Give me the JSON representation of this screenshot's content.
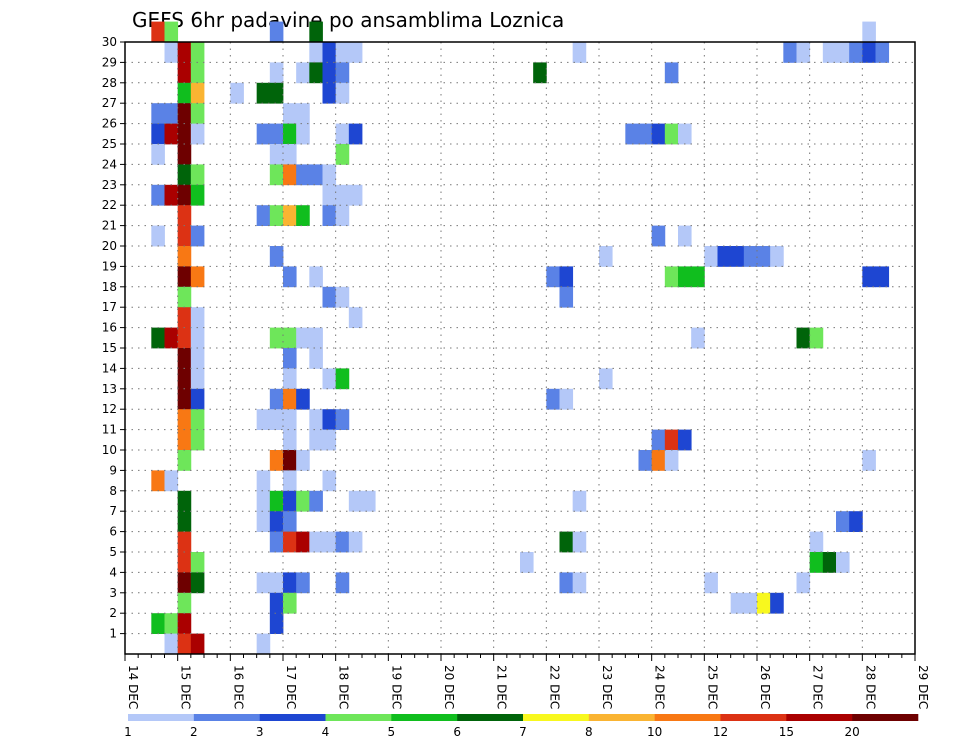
{
  "chart_data": {
    "type": "heatmap",
    "title": "GEFS 6hr padavine po ansamblima Loznica",
    "xlabel": "",
    "ylabel": "",
    "x_ticks": [
      "14 DEC",
      "15 DEC",
      "16 DEC",
      "17 DEC",
      "18 DEC",
      "19 DEC",
      "20 DEC",
      "21 DEC",
      "22 DEC",
      "23 DEC",
      "24 DEC",
      "25 DEC",
      "26 DEC",
      "27 DEC",
      "28 DEC",
      "29 DEC"
    ],
    "y_ticks": [
      1,
      2,
      3,
      4,
      5,
      6,
      7,
      8,
      9,
      10,
      11,
      12,
      13,
      14,
      15,
      16,
      17,
      18,
      19,
      20,
      21,
      22,
      23,
      24,
      25,
      26,
      27,
      28,
      29,
      30
    ],
    "xlim": [
      0,
      60
    ],
    "ylim": [
      0,
      30
    ],
    "x_unit": "6-hour step from 14 DEC 00",
    "grid": true,
    "colorbar": {
      "placement": "bottom",
      "labels": [
        "1",
        "2",
        "3",
        "4",
        "5",
        "6",
        "7",
        "8",
        "10",
        "12",
        "15",
        "20"
      ],
      "colors": [
        "#b4c8f8",
        "#5a82e6",
        "#1e46d2",
        "#6ee65a",
        "#10be1e",
        "#00640a",
        "#f8f81e",
        "#fab432",
        "#f87814",
        "#dc3214",
        "#aa0000",
        "#6e0000"
      ]
    },
    "cells": [
      [
        2,
        30,
        10
      ],
      [
        3,
        30,
        4
      ],
      [
        11,
        30,
        2
      ],
      [
        14,
        30,
        6
      ],
      [
        56,
        30,
        1
      ],
      [
        3,
        29,
        1
      ],
      [
        4,
        29,
        11
      ],
      [
        5,
        29,
        4
      ],
      [
        14,
        29,
        1
      ],
      [
        15,
        29,
        3
      ],
      [
        16,
        29,
        1
      ],
      [
        17,
        29,
        1
      ],
      [
        34,
        29,
        1
      ],
      [
        50,
        29,
        2
      ],
      [
        51,
        29,
        1
      ],
      [
        53,
        29,
        1
      ],
      [
        54,
        29,
        1
      ],
      [
        55,
        29,
        2
      ],
      [
        56,
        29,
        3
      ],
      [
        57,
        29,
        2
      ],
      [
        4,
        28,
        11
      ],
      [
        5,
        28,
        4
      ],
      [
        11,
        28,
        1
      ],
      [
        13,
        28,
        1
      ],
      [
        14,
        28,
        6
      ],
      [
        15,
        28,
        3
      ],
      [
        16,
        28,
        2
      ],
      [
        31,
        28,
        6
      ],
      [
        41,
        28,
        2
      ],
      [
        4,
        27,
        5
      ],
      [
        5,
        27,
        8
      ],
      [
        8,
        27,
        1
      ],
      [
        10,
        27,
        6
      ],
      [
        11,
        27,
        6
      ],
      [
        15,
        27,
        3
      ],
      [
        16,
        27,
        1
      ],
      [
        2,
        26,
        2
      ],
      [
        3,
        26,
        2
      ],
      [
        4,
        26,
        12
      ],
      [
        5,
        26,
        4
      ],
      [
        12,
        26,
        1
      ],
      [
        13,
        26,
        1
      ],
      [
        2,
        25,
        3
      ],
      [
        3,
        25,
        11
      ],
      [
        4,
        25,
        12
      ],
      [
        5,
        25,
        1
      ],
      [
        10,
        25,
        2
      ],
      [
        11,
        25,
        2
      ],
      [
        12,
        25,
        5
      ],
      [
        13,
        25,
        1
      ],
      [
        16,
        25,
        1
      ],
      [
        17,
        25,
        3
      ],
      [
        38,
        25,
        2
      ],
      [
        39,
        25,
        2
      ],
      [
        40,
        25,
        3
      ],
      [
        41,
        25,
        4
      ],
      [
        42,
        25,
        1
      ],
      [
        2,
        24,
        1
      ],
      [
        4,
        24,
        12
      ],
      [
        11,
        24,
        1
      ],
      [
        12,
        24,
        1
      ],
      [
        16,
        24,
        4
      ],
      [
        4,
        23,
        6
      ],
      [
        5,
        23,
        4
      ],
      [
        11,
        23,
        4
      ],
      [
        12,
        23,
        9
      ],
      [
        13,
        23,
        2
      ],
      [
        14,
        23,
        2
      ],
      [
        15,
        23,
        1
      ],
      [
        2,
        22,
        2
      ],
      [
        3,
        22,
        11
      ],
      [
        4,
        22,
        12
      ],
      [
        5,
        22,
        5
      ],
      [
        15,
        22,
        1
      ],
      [
        16,
        22,
        1
      ],
      [
        17,
        22,
        1
      ],
      [
        4,
        21,
        10
      ],
      [
        10,
        21,
        2
      ],
      [
        11,
        21,
        4
      ],
      [
        12,
        21,
        8
      ],
      [
        13,
        21,
        5
      ],
      [
        15,
        21,
        2
      ],
      [
        16,
        21,
        1
      ],
      [
        2,
        20,
        1
      ],
      [
        4,
        20,
        10
      ],
      [
        5,
        20,
        2
      ],
      [
        40,
        20,
        2
      ],
      [
        42,
        20,
        1
      ],
      [
        4,
        19,
        9
      ],
      [
        11,
        19,
        2
      ],
      [
        36,
        19,
        1
      ],
      [
        44,
        19,
        1
      ],
      [
        45,
        19,
        3
      ],
      [
        46,
        19,
        3
      ],
      [
        47,
        19,
        2
      ],
      [
        48,
        19,
        2
      ],
      [
        49,
        19,
        1
      ],
      [
        4,
        18,
        12
      ],
      [
        5,
        18,
        9
      ],
      [
        12,
        18,
        2
      ],
      [
        14,
        18,
        1
      ],
      [
        32,
        18,
        2
      ],
      [
        33,
        18,
        3
      ],
      [
        41,
        18,
        4
      ],
      [
        42,
        18,
        5
      ],
      [
        43,
        18,
        5
      ],
      [
        56,
        18,
        3
      ],
      [
        57,
        18,
        3
      ],
      [
        4,
        17,
        4
      ],
      [
        15,
        17,
        2
      ],
      [
        16,
        17,
        1
      ],
      [
        33,
        17,
        2
      ],
      [
        4,
        16,
        10
      ],
      [
        5,
        16,
        1
      ],
      [
        17,
        16,
        1
      ],
      [
        2,
        15,
        6
      ],
      [
        3,
        15,
        11
      ],
      [
        4,
        15,
        10
      ],
      [
        5,
        15,
        1
      ],
      [
        11,
        15,
        4
      ],
      [
        12,
        15,
        4
      ],
      [
        13,
        15,
        1
      ],
      [
        14,
        15,
        1
      ],
      [
        43,
        15,
        1
      ],
      [
        51,
        15,
        6
      ],
      [
        52,
        15,
        4
      ],
      [
        4,
        14,
        12
      ],
      [
        5,
        14,
        1
      ],
      [
        12,
        14,
        2
      ],
      [
        14,
        14,
        1
      ],
      [
        4,
        13,
        12
      ],
      [
        5,
        13,
        1
      ],
      [
        12,
        13,
        1
      ],
      [
        15,
        13,
        1
      ],
      [
        16,
        13,
        5
      ],
      [
        36,
        13,
        1
      ],
      [
        4,
        12,
        12
      ],
      [
        5,
        12,
        3
      ],
      [
        11,
        12,
        2
      ],
      [
        12,
        12,
        9
      ],
      [
        13,
        12,
        3
      ],
      [
        32,
        12,
        2
      ],
      [
        33,
        12,
        1
      ],
      [
        4,
        11,
        9
      ],
      [
        5,
        11,
        4
      ],
      [
        10,
        11,
        1
      ],
      [
        11,
        11,
        1
      ],
      [
        12,
        11,
        1
      ],
      [
        14,
        11,
        1
      ],
      [
        15,
        11,
        3
      ],
      [
        16,
        11,
        2
      ],
      [
        4,
        10,
        9
      ],
      [
        5,
        10,
        4
      ],
      [
        12,
        10,
        1
      ],
      [
        14,
        10,
        1
      ],
      [
        15,
        10,
        1
      ],
      [
        40,
        10,
        2
      ],
      [
        41,
        10,
        10
      ],
      [
        42,
        10,
        3
      ],
      [
        4,
        9,
        4
      ],
      [
        11,
        9,
        9
      ],
      [
        12,
        9,
        12
      ],
      [
        13,
        9,
        1
      ],
      [
        39,
        9,
        2
      ],
      [
        40,
        9,
        9
      ],
      [
        41,
        9,
        1
      ],
      [
        56,
        9,
        1
      ],
      [
        2,
        8,
        9
      ],
      [
        3,
        8,
        1
      ],
      [
        10,
        8,
        1
      ],
      [
        12,
        8,
        1
      ],
      [
        15,
        8,
        1
      ],
      [
        4,
        7,
        6
      ],
      [
        10,
        7,
        1
      ],
      [
        11,
        7,
        5
      ],
      [
        12,
        7,
        3
      ],
      [
        13,
        7,
        4
      ],
      [
        14,
        7,
        2
      ],
      [
        17,
        7,
        1
      ],
      [
        18,
        7,
        1
      ],
      [
        34,
        7,
        1
      ],
      [
        4,
        6,
        6
      ],
      [
        10,
        6,
        1
      ],
      [
        11,
        6,
        3
      ],
      [
        12,
        6,
        2
      ],
      [
        54,
        6,
        2
      ],
      [
        55,
        6,
        3
      ],
      [
        4,
        5,
        10
      ],
      [
        11,
        5,
        2
      ],
      [
        12,
        5,
        10
      ],
      [
        13,
        5,
        11
      ],
      [
        14,
        5,
        1
      ],
      [
        15,
        5,
        1
      ],
      [
        16,
        5,
        2
      ],
      [
        17,
        5,
        1
      ],
      [
        33,
        5,
        6
      ],
      [
        34,
        5,
        1
      ],
      [
        52,
        5,
        1
      ],
      [
        4,
        4,
        10
      ],
      [
        5,
        4,
        4
      ],
      [
        30,
        4,
        1
      ],
      [
        52,
        4,
        5
      ],
      [
        53,
        4,
        6
      ],
      [
        54,
        4,
        1
      ],
      [
        4,
        3,
        12
      ],
      [
        5,
        3,
        6
      ],
      [
        10,
        3,
        1
      ],
      [
        11,
        3,
        1
      ],
      [
        12,
        3,
        3
      ],
      [
        13,
        3,
        2
      ],
      [
        16,
        3,
        2
      ],
      [
        33,
        3,
        2
      ],
      [
        34,
        3,
        1
      ],
      [
        44,
        3,
        1
      ],
      [
        51,
        3,
        1
      ],
      [
        4,
        2,
        4
      ],
      [
        11,
        2,
        3
      ],
      [
        12,
        2,
        4
      ],
      [
        46,
        2,
        1
      ],
      [
        47,
        2,
        1
      ],
      [
        48,
        2,
        7
      ],
      [
        49,
        2,
        3
      ],
      [
        2,
        1,
        5
      ],
      [
        3,
        1,
        4
      ],
      [
        4,
        1,
        11
      ],
      [
        11,
        1,
        3
      ],
      [
        3,
        0,
        1
      ],
      [
        4,
        0,
        10
      ],
      [
        5,
        0,
        11
      ],
      [
        10,
        0,
        1
      ]
    ]
  }
}
